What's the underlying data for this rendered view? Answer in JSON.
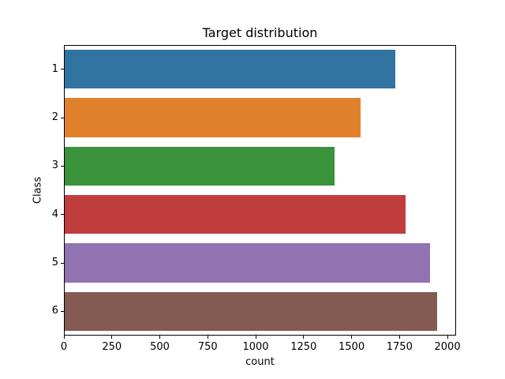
{
  "figure": {
    "background_color": "#ffffff",
    "text_color": "#000000",
    "spine_color": "#000000"
  },
  "chart_data": {
    "type": "bar",
    "orientation": "horizontal",
    "title": "Target distribution",
    "xlabel": "count",
    "ylabel": "Class",
    "categories": [
      "1",
      "2",
      "3",
      "4",
      "5",
      "6"
    ],
    "values": [
      1722,
      1544,
      1406,
      1777,
      1906,
      1944
    ],
    "bar_colors": [
      "#3274a1",
      "#e1812c",
      "#3a923a",
      "#c03d3e",
      "#9372b2",
      "#845b53"
    ],
    "xlim": [
      0,
      2045
    ],
    "xticks": [
      0,
      250,
      500,
      750,
      1000,
      1250,
      1500,
      1750,
      2000
    ],
    "bar_width_fraction": 0.8,
    "grid": false,
    "legend": null
  }
}
